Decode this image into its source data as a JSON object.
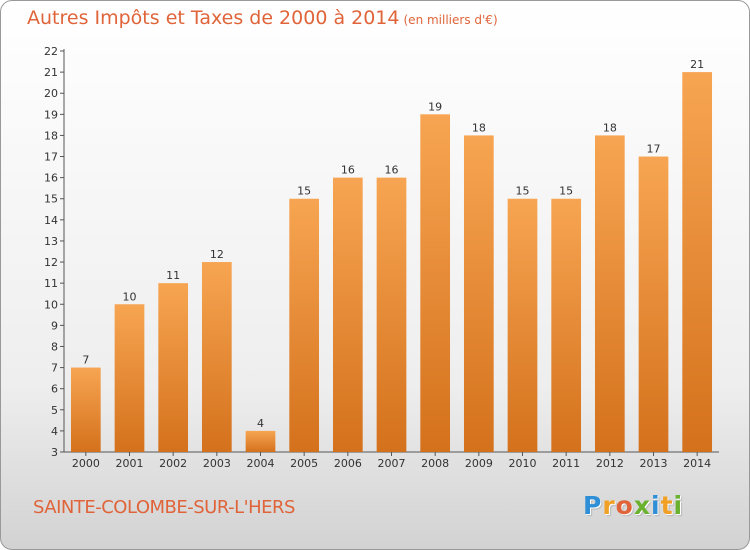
{
  "chart_data": {
    "type": "bar",
    "title": "Autres Impôts et Taxes de 2000 à 2014",
    "subtitle": "(en milliers d'€)",
    "categories": [
      "2000",
      "2001",
      "2002",
      "2003",
      "2004",
      "2005",
      "2006",
      "2007",
      "2008",
      "2009",
      "2010",
      "2011",
      "2012",
      "2013",
      "2014"
    ],
    "values": [
      7,
      10,
      11,
      12,
      4,
      15,
      16,
      16,
      19,
      18,
      15,
      15,
      18,
      17,
      21
    ],
    "ylim": [
      3,
      22
    ],
    "yticks": [
      3,
      4,
      5,
      6,
      7,
      8,
      9,
      10,
      11,
      12,
      13,
      14,
      15,
      16,
      17,
      18,
      19,
      20,
      21,
      22
    ],
    "grid": false,
    "bar_color_top": "#f7a552",
    "bar_color_bottom": "#d4711c"
  },
  "place_name": "SAINTE-COLOMBE-SUR-L'HERS",
  "logo": {
    "text": "Proxiti",
    "letters": [
      {
        "ch": "P",
        "color": "#2f8fd6"
      },
      {
        "ch": "r",
        "color": "#f0a024"
      },
      {
        "ch": "o",
        "color": "#e0643a"
      },
      {
        "ch": "x",
        "color": "#6ab22e"
      },
      {
        "ch": "i",
        "color": "#2f8fd6"
      },
      {
        "ch": "t",
        "color": "#f0a024"
      },
      {
        "ch": "i",
        "color": "#6ab22e"
      }
    ]
  }
}
